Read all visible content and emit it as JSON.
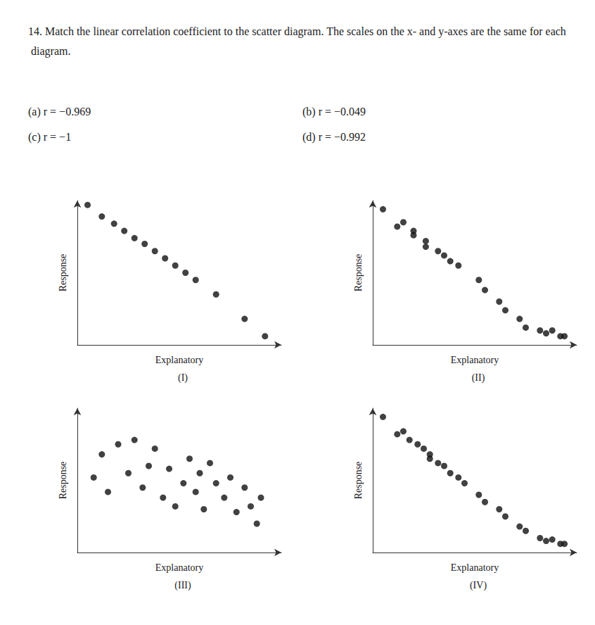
{
  "title": "14. Match the linear correlation coefficient to the scatter diagram. The scales on the x- and y-axes are the same for each diagram.",
  "annotations": [
    "(a) r = −0.969",
    "(b) r = −0.049",
    "(c) r = −1",
    "(d) r = −0.992"
  ],
  "chart_data": [
    {
      "type": "scatter",
      "title": "(I)",
      "xlabel": "Explanatory",
      "ylabel": "Response",
      "x": [
        0.05,
        0.12,
        0.18,
        0.23,
        0.28,
        0.33,
        0.38,
        0.43,
        0.48,
        0.53,
        0.58,
        0.68,
        0.82,
        0.92
      ],
      "values": [
        0.97,
        0.89,
        0.84,
        0.79,
        0.74,
        0.7,
        0.65,
        0.6,
        0.55,
        0.5,
        0.45,
        0.35,
        0.18,
        0.06
      ],
      "color": "#111111",
      "xlim": [
        0,
        1
      ],
      "ylim": [
        0,
        1
      ],
      "tick_labels": false,
      "grid": false
    },
    {
      "type": "scatter",
      "title": "(II)",
      "xlabel": "Explanatory",
      "ylabel": "Response",
      "x": [
        0.05,
        0.12,
        0.15,
        0.2,
        0.2,
        0.26,
        0.26,
        0.32,
        0.35,
        0.38,
        0.42,
        0.52,
        0.55,
        0.62,
        0.65,
        0.72,
        0.75,
        0.82,
        0.85,
        0.88,
        0.92,
        0.94
      ],
      "values": [
        0.94,
        0.82,
        0.85,
        0.76,
        0.79,
        0.72,
        0.68,
        0.65,
        0.62,
        0.58,
        0.55,
        0.45,
        0.38,
        0.3,
        0.24,
        0.18,
        0.12,
        0.1,
        0.08,
        0.1,
        0.06,
        0.06
      ],
      "color": "#111111",
      "xlim": [
        0,
        1
      ],
      "ylim": [
        0,
        1
      ],
      "tick_labels": false,
      "grid": false
    },
    {
      "type": "scatter",
      "title": "(III)",
      "xlabel": "Explanatory",
      "ylabel": "Response",
      "x": [
        0.08,
        0.12,
        0.15,
        0.2,
        0.25,
        0.28,
        0.32,
        0.35,
        0.38,
        0.42,
        0.45,
        0.48,
        0.52,
        0.55,
        0.58,
        0.6,
        0.62,
        0.65,
        0.68,
        0.72,
        0.75,
        0.78,
        0.82,
        0.85,
        0.88,
        0.9
      ],
      "values": [
        0.52,
        0.68,
        0.42,
        0.75,
        0.55,
        0.78,
        0.45,
        0.6,
        0.72,
        0.38,
        0.58,
        0.32,
        0.48,
        0.65,
        0.42,
        0.55,
        0.3,
        0.62,
        0.48,
        0.38,
        0.52,
        0.28,
        0.45,
        0.32,
        0.2,
        0.38
      ],
      "color": "#111111",
      "xlim": [
        0,
        1
      ],
      "ylim": [
        0,
        1
      ],
      "tick_labels": false,
      "grid": false
    },
    {
      "type": "scatter",
      "title": "(IV)",
      "xlabel": "Explanatory",
      "ylabel": "Response",
      "x": [
        0.05,
        0.12,
        0.15,
        0.18,
        0.22,
        0.25,
        0.28,
        0.28,
        0.32,
        0.35,
        0.38,
        0.42,
        0.45,
        0.52,
        0.55,
        0.62,
        0.65,
        0.72,
        0.75,
        0.82,
        0.85,
        0.88,
        0.92,
        0.94
      ],
      "values": [
        0.94,
        0.82,
        0.84,
        0.78,
        0.75,
        0.72,
        0.68,
        0.65,
        0.62,
        0.6,
        0.55,
        0.52,
        0.48,
        0.4,
        0.35,
        0.3,
        0.25,
        0.18,
        0.15,
        0.1,
        0.08,
        0.09,
        0.06,
        0.06
      ],
      "color": "#111111",
      "xlim": [
        0,
        1
      ],
      "ylim": [
        0,
        1
      ],
      "tick_labels": false,
      "grid": false
    }
  ]
}
